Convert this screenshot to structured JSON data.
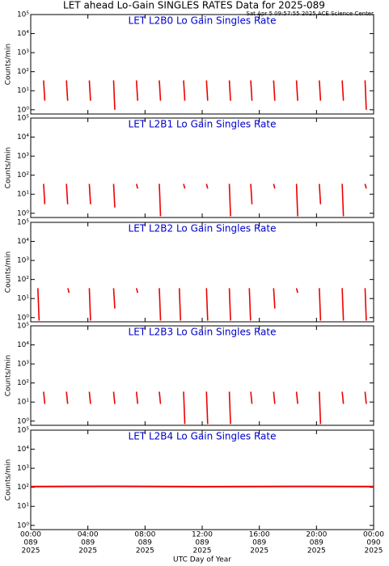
{
  "title": "LET ahead Lo-Gain SINGLES RATES Data for 2025-089",
  "timestamp": "Sat Apr  5 09:57:55 2025 ACE Science Center",
  "xlabel": "UTC Day of Year",
  "xlim": [
    0,
    24
  ],
  "xticks": [
    {
      "value": 0,
      "label": "00:00"
    },
    {
      "value": 4,
      "label": "04:00"
    },
    {
      "value": 8,
      "label": "08:00"
    },
    {
      "value": 12,
      "label": "12:00"
    },
    {
      "value": 16,
      "label": "16:00"
    },
    {
      "value": 20,
      "label": "20:00"
    },
    {
      "value": 24,
      "label": "00:00"
    }
  ],
  "xtick_days": [
    "089",
    "089",
    "089",
    "089",
    "089",
    "089",
    "090"
  ],
  "xtick_years": [
    "2025",
    "2025",
    "2025",
    "2025",
    "2025",
    "2025",
    "2025"
  ],
  "chart_data": [
    {
      "type": "spike",
      "title": "LET L2B0 Lo Gain Singles Rate",
      "ylabel": "Counts/min",
      "color": "#ee0000",
      "log": true,
      "ylim": [
        0.6,
        100000
      ],
      "yticks": [
        {
          "value": 1,
          "label": "10⁰"
        },
        {
          "value": 10,
          "label": "10¹"
        },
        {
          "value": 100,
          "label": "10²"
        },
        {
          "value": 1000,
          "label": "10³"
        },
        {
          "value": 10000,
          "label": "10⁴"
        },
        {
          "value": 100000,
          "label": "10⁵"
        }
      ],
      "x": [
        0.9,
        2.5,
        4.1,
        5.8,
        7.4,
        9.0,
        10.7,
        12.3,
        13.9,
        15.4,
        17.0,
        18.6,
        20.2,
        21.8,
        23.4
      ],
      "values": [
        35,
        35,
        35,
        35,
        35,
        35,
        35,
        35,
        35,
        35,
        35,
        35,
        35,
        35,
        35
      ],
      "lows": [
        3,
        3,
        3,
        1,
        3,
        3,
        3,
        3,
        3,
        3,
        3,
        3,
        3,
        3,
        1
      ]
    },
    {
      "type": "spike",
      "title": "LET L2B1 Lo Gain Singles Rate",
      "ylabel": "Counts/min",
      "color": "#ee0000",
      "log": true,
      "ylim": [
        0.6,
        100000
      ],
      "yticks": [
        {
          "value": 1,
          "label": "10⁰"
        },
        {
          "value": 10,
          "label": "10¹"
        },
        {
          "value": 100,
          "label": "10²"
        },
        {
          "value": 1000,
          "label": "10³"
        },
        {
          "value": 10000,
          "label": "10⁴"
        },
        {
          "value": 100000,
          "label": "10⁵"
        }
      ],
      "x": [
        0.9,
        2.5,
        4.1,
        5.8,
        7.4,
        9.0,
        10.7,
        12.3,
        13.9,
        15.4,
        17.0,
        18.6,
        20.2,
        21.8,
        23.4
      ],
      "values": [
        35,
        35,
        35,
        35,
        35,
        35,
        35,
        35,
        35,
        35,
        35,
        35,
        35,
        35,
        35
      ],
      "lows": [
        3,
        3,
        3,
        2,
        20,
        0.7,
        20,
        20,
        0.7,
        3,
        20,
        0.7,
        3,
        0.7,
        20
      ]
    },
    {
      "type": "spike",
      "title": "LET L2B2 Lo Gain Singles Rate",
      "ylabel": "Counts/min",
      "color": "#ee0000",
      "log": true,
      "ylim": [
        0.6,
        100000
      ],
      "yticks": [
        {
          "value": 1,
          "label": "10⁰"
        },
        {
          "value": 10,
          "label": "10¹"
        },
        {
          "value": 100,
          "label": "10²"
        },
        {
          "value": 1000,
          "label": "10³"
        },
        {
          "value": 10000,
          "label": "10⁴"
        },
        {
          "value": 100000,
          "label": "10⁵"
        }
      ],
      "x": [
        0.5,
        2.6,
        4.1,
        5.8,
        7.4,
        9.0,
        10.4,
        12.3,
        13.9,
        15.3,
        17.0,
        18.6,
        20.2,
        21.8,
        23.4
      ],
      "values": [
        35,
        35,
        35,
        35,
        35,
        35,
        35,
        35,
        35,
        35,
        35,
        35,
        35,
        35,
        35
      ],
      "lows": [
        0.7,
        20,
        0.7,
        3,
        20,
        0.7,
        0.7,
        0.7,
        0.7,
        0.7,
        3,
        20,
        0.7,
        0.7,
        0.7
      ]
    },
    {
      "type": "spike",
      "title": "LET L2B3 Lo Gain Singles Rate",
      "ylabel": "Counts/min",
      "color": "#ee0000",
      "log": true,
      "ylim": [
        0.6,
        100000
      ],
      "yticks": [
        {
          "value": 1,
          "label": "10⁰"
        },
        {
          "value": 10,
          "label": "10¹"
        },
        {
          "value": 100,
          "label": "10²"
        },
        {
          "value": 1000,
          "label": "10³"
        },
        {
          "value": 10000,
          "label": "10⁴"
        },
        {
          "value": 100000,
          "label": "10⁵"
        }
      ],
      "x": [
        0.9,
        2.5,
        4.1,
        5.8,
        7.4,
        9.0,
        10.7,
        12.3,
        13.9,
        15.4,
        17.0,
        18.6,
        20.2,
        21.8,
        23.4
      ],
      "values": [
        35,
        35,
        35,
        35,
        35,
        35,
        35,
        35,
        35,
        35,
        35,
        35,
        35,
        35,
        35
      ],
      "lows": [
        8,
        8,
        8,
        8,
        8,
        8,
        0.7,
        0.7,
        0.7,
        8,
        8,
        8,
        0.7,
        8,
        8
      ]
    },
    {
      "type": "line",
      "title": "LET L2B4 Lo Gain Singles Rate",
      "ylabel": "Counts/min",
      "color": "#ee0000",
      "log": true,
      "ylim": [
        0.6,
        100000
      ],
      "yticks": [
        {
          "value": 1,
          "label": "10⁰"
        },
        {
          "value": 10,
          "label": "10¹"
        },
        {
          "value": 100,
          "label": "10²"
        },
        {
          "value": 1000,
          "label": "10³"
        },
        {
          "value": 10000,
          "label": "10⁴"
        },
        {
          "value": 100000,
          "label": "10⁵"
        }
      ],
      "x": [
        0,
        6,
        12,
        18,
        24
      ],
      "values": [
        110,
        112,
        108,
        111,
        110
      ]
    }
  ]
}
